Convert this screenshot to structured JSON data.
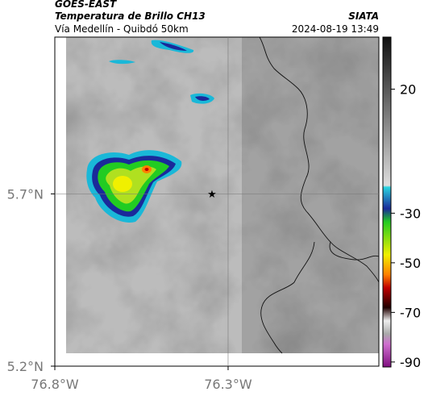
{
  "header": {
    "title": "GOES-EAST",
    "subtitle": "Temperatura de Brillo CH13",
    "source": "SIATA",
    "route": "Vía Medellín - Quibdó 50km",
    "datetime": "2024-08-19 13:49"
  },
  "map": {
    "xlim": [
      -76.8,
      -75.865
    ],
    "ylim": [
      5.2,
      6.155
    ],
    "xticks": [
      {
        "value": -76.8,
        "label": "76.8°W"
      },
      {
        "value": -76.3,
        "label": "76.3°W"
      }
    ],
    "yticks": [
      {
        "value": 5.2,
        "label": "5.2°N"
      },
      {
        "value": 5.7,
        "label": "5.7°N"
      }
    ]
  },
  "colorbar": {
    "lim": [
      -92,
      41
    ],
    "ticks": [
      20,
      -30,
      -50,
      -70,
      -90
    ]
  }
}
